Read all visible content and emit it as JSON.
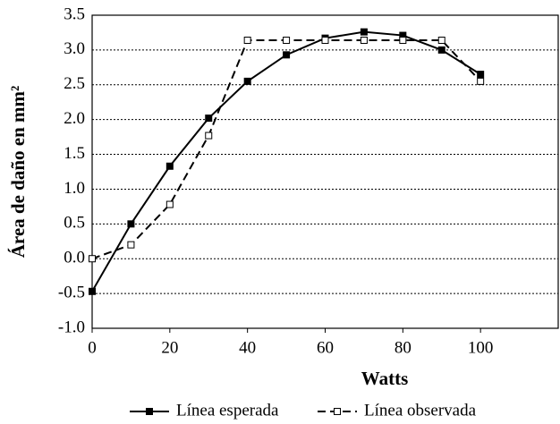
{
  "chart_data": {
    "type": "line",
    "xlabel": "Watts",
    "ylabel": "Área de daño en mm²",
    "x": [
      0,
      10,
      20,
      30,
      40,
      50,
      60,
      70,
      80,
      90,
      100
    ],
    "series": [
      {
        "name": "Línea esperada",
        "color": "#000000",
        "line_style": "solid",
        "marker": "filled-square",
        "values": [
          -0.47,
          0.5,
          1.33,
          2.02,
          2.55,
          2.93,
          3.17,
          3.26,
          3.21,
          3.0,
          2.65
        ]
      },
      {
        "name": "Línea observada",
        "color": "#000000",
        "line_style": "dashed",
        "marker": "open-square",
        "values": [
          0.0,
          0.2,
          0.78,
          1.77,
          3.14,
          3.14,
          3.14,
          3.14,
          3.14,
          3.14,
          2.55
        ]
      }
    ],
    "xlim": [
      0,
      120
    ],
    "xticks": [
      0,
      20,
      40,
      60,
      80,
      100
    ],
    "ylim": [
      -1,
      3.5
    ],
    "yticks": [
      {
        "value": -1,
        "label": "-1.0"
      },
      -0.5,
      {
        "value": 0,
        "label": "0.0"
      },
      0.5,
      {
        "value": 1,
        "label": "1.0"
      },
      1.5,
      {
        "value": 2,
        "label": "2.0"
      },
      2.5,
      {
        "value": 3,
        "label": "3.0"
      },
      3.5
    ],
    "grid": "dotted",
    "legend": "bottom"
  }
}
